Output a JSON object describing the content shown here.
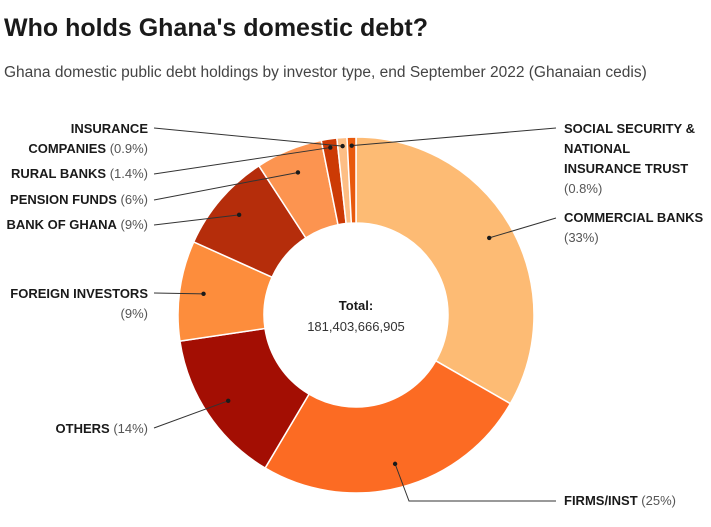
{
  "header": {
    "title": "Who holds Ghana's domestic debt?",
    "subtitle": "Ghana domestic public debt holdings by investor type, end September 2022 (Ghanaian cedis)"
  },
  "chart_data": {
    "type": "pie",
    "variant": "donut",
    "title": "Who holds Ghana's domestic debt?",
    "subtitle": "Ghana domestic public debt holdings by investor type, end September 2022 (Ghanaian cedis)",
    "total_label": "Total:",
    "total_value": "181,403,666,905",
    "units": "Ghanaian cedis",
    "slices": [
      {
        "name": "COMMERCIAL BANKS",
        "lines": [
          "COMMERCIAL BANKS"
        ],
        "pct_label": "(33%)",
        "value": 33,
        "color": "#fdbb74"
      },
      {
        "name": "FIRMS/INST",
        "lines": [
          "FIRMS/INST"
        ],
        "pct_label": "(25%)",
        "value": 25,
        "color": "#fc6b23"
      },
      {
        "name": "OTHERS",
        "lines": [
          "OTHERS"
        ],
        "pct_label": "(14%)",
        "value": 14,
        "color": "#a30e03"
      },
      {
        "name": "FOREIGN INVESTORS",
        "lines": [
          "FOREIGN INVESTORS"
        ],
        "pct_label": "(9%)",
        "value": 9,
        "color": "#fd8d3c"
      },
      {
        "name": "BANK OF GHANA",
        "lines": [
          "BANK OF GHANA"
        ],
        "pct_label": "(9%)",
        "value": 9,
        "color": "#b52d0b"
      },
      {
        "name": "PENSION FUNDS",
        "lines": [
          "PENSION FUNDS"
        ],
        "pct_label": "(6%)",
        "value": 6,
        "color": "#fc9450"
      },
      {
        "name": "RURAL BANKS",
        "lines": [
          "RURAL BANKS"
        ],
        "pct_label": "(1.4%)",
        "value": 1.4,
        "color": "#cc3a05"
      },
      {
        "name": "INSURANCE COMPANIES",
        "lines": [
          "INSURANCE",
          "COMPANIES"
        ],
        "pct_label": "(0.9%)",
        "value": 0.9,
        "color": "#fdbe85"
      },
      {
        "name": "SOCIAL SECURITY & NATIONAL INSURANCE TRUST",
        "lines": [
          "SOCIAL SECURITY &",
          "NATIONAL",
          "INSURANCE TRUST"
        ],
        "pct_label": "(0.8%)",
        "value": 0.8,
        "color": "#e8590c"
      }
    ]
  }
}
